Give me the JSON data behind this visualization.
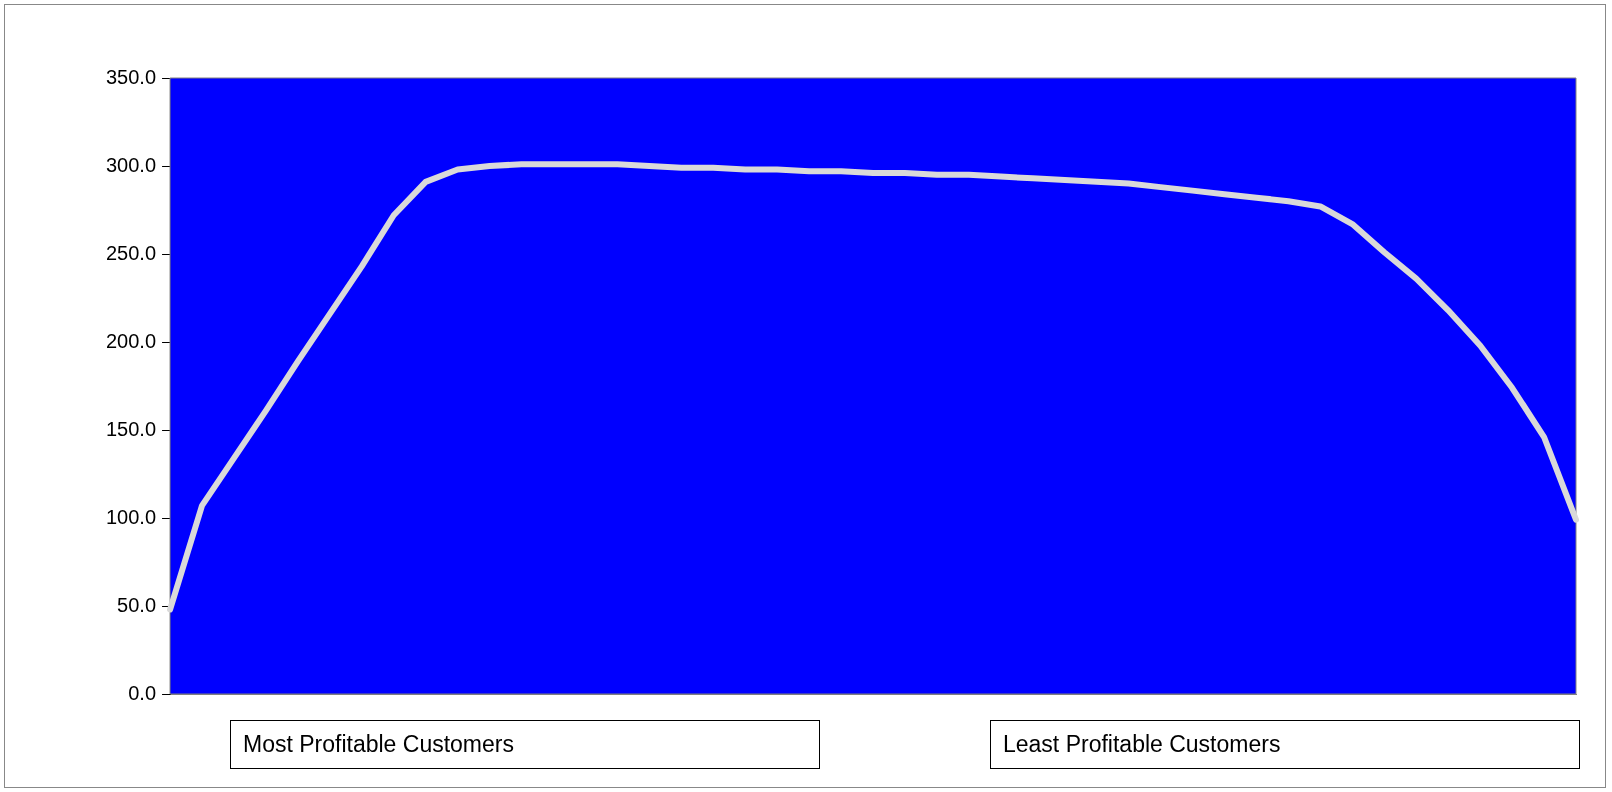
{
  "chart_data": {
    "type": "line",
    "categories": [
      null,
      null,
      null,
      null,
      null,
      null,
      null,
      null,
      null,
      null,
      null,
      null,
      null,
      null,
      null,
      null,
      null,
      null,
      null,
      null,
      null,
      null,
      null,
      null,
      null,
      null,
      null,
      null,
      null,
      null,
      null,
      null,
      null,
      null,
      null,
      null,
      null,
      null,
      null,
      null,
      null,
      null,
      null,
      null,
      null
    ],
    "series": [
      {
        "color": "#d9d9d9",
        "values": [
          48,
          107,
          134,
          161,
          189,
          216,
          243,
          272,
          291,
          298,
          300,
          301,
          301,
          301,
          301,
          300,
          299,
          299,
          298,
          298,
          297,
          297,
          296,
          296,
          295,
          295,
          294,
          293,
          292,
          291,
          290,
          288,
          286,
          284,
          282,
          280,
          277,
          267,
          251,
          236,
          218,
          198,
          174,
          146,
          99
        ]
      }
    ],
    "ylim": [
      0,
      350
    ],
    "yticks": [
      {
        "value": 0,
        "label": "0.0"
      },
      {
        "value": 50,
        "label": "50.0"
      },
      {
        "value": 100,
        "label": "100.0"
      },
      {
        "value": 150,
        "label": "150.0"
      },
      {
        "value": 200,
        "label": "200.0"
      },
      {
        "value": 250,
        "label": "250.0"
      },
      {
        "value": 300,
        "label": "300.0"
      },
      {
        "value": 350,
        "label": "350.0"
      }
    ],
    "tick_labels": "y",
    "grid": false,
    "legend": false,
    "marker": "none",
    "line_style": "solid",
    "annotations": [
      "Most Profitable Customers",
      "Least Profitable Customers"
    ]
  }
}
